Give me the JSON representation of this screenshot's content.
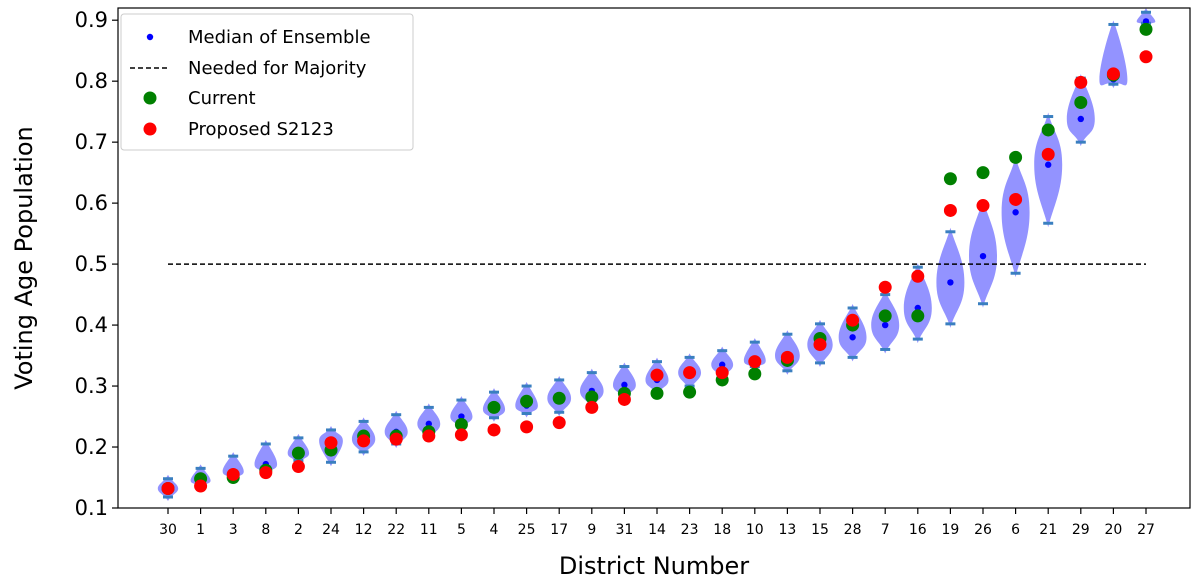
{
  "chart_data": {
    "type": "scatter",
    "title": "",
    "xlabel": "District Number",
    "ylabel": "Voting Age Population",
    "ylim": [
      0.1,
      0.92
    ],
    "yticks": [
      "0.1",
      "0.2",
      "0.3",
      "0.4",
      "0.5",
      "0.6",
      "0.7",
      "0.8",
      "0.9"
    ],
    "categories": [
      "30",
      "1",
      "3",
      "8",
      "2",
      "24",
      "12",
      "22",
      "11",
      "5",
      "4",
      "25",
      "17",
      "9",
      "31",
      "14",
      "23",
      "18",
      "10",
      "13",
      "15",
      "28",
      "7",
      "16",
      "19",
      "26",
      "6",
      "21",
      "29",
      "20",
      "27"
    ],
    "majority_line": 0.5,
    "legend_position": "top-left",
    "colors": {
      "median": "#0000ff",
      "majority": "#000000",
      "current": "#008000",
      "proposed": "#ff0000",
      "violin": "#8080ff",
      "whisker": "#3a7fc0"
    },
    "legend": [
      {
        "label": "Median of Ensemble",
        "marker": "small-dot",
        "color": "#0000ff"
      },
      {
        "label": "Needed for Majority",
        "marker": "dashed-line",
        "color": "#000000"
      },
      {
        "label": "Current",
        "marker": "dot",
        "color": "#008000"
      },
      {
        "label": "Proposed S2123",
        "marker": "dot",
        "color": "#ff0000"
      }
    ],
    "series": [
      {
        "name": "Median of Ensemble",
        "values": [
          0.132,
          0.145,
          0.16,
          0.172,
          0.19,
          0.21,
          0.213,
          0.225,
          0.238,
          0.25,
          0.262,
          0.268,
          0.28,
          0.292,
          0.302,
          0.31,
          0.322,
          0.335,
          0.342,
          0.35,
          0.368,
          0.38,
          0.4,
          0.428,
          0.47,
          0.513,
          0.585,
          0.663,
          0.738,
          0.803,
          0.898
        ]
      },
      {
        "name": "Current",
        "values": [
          0.132,
          0.148,
          0.15,
          0.162,
          0.19,
          0.195,
          0.218,
          0.218,
          0.225,
          0.237,
          0.265,
          0.275,
          0.28,
          0.282,
          0.288,
          0.288,
          0.29,
          0.31,
          0.32,
          0.342,
          0.378,
          0.4,
          0.415,
          0.415,
          0.64,
          0.65,
          0.675,
          0.72,
          0.765,
          0.81,
          0.885
        ]
      },
      {
        "name": "Proposed S2123",
        "values": [
          0.132,
          0.136,
          0.155,
          0.158,
          0.168,
          0.207,
          0.21,
          0.213,
          0.218,
          0.22,
          0.228,
          0.233,
          0.24,
          0.265,
          0.278,
          0.318,
          0.322,
          0.322,
          0.34,
          0.347,
          0.368,
          0.408,
          0.462,
          0.48,
          0.588,
          0.596,
          0.606,
          0.68,
          0.798,
          0.812,
          0.84
        ]
      }
    ],
    "ensemble_min": [
      0.118,
      0.138,
      0.15,
      0.16,
      0.178,
      0.175,
      0.192,
      0.205,
      0.218,
      0.235,
      0.248,
      0.255,
      0.257,
      0.27,
      0.285,
      0.292,
      0.3,
      0.318,
      0.332,
      0.325,
      0.338,
      0.347,
      0.36,
      0.377,
      0.402,
      0.435,
      0.485,
      0.567,
      0.7,
      0.795,
      0.895
    ],
    "ensemble_max": [
      0.148,
      0.165,
      0.185,
      0.205,
      0.215,
      0.228,
      0.242,
      0.253,
      0.265,
      0.277,
      0.29,
      0.3,
      0.31,
      0.322,
      0.332,
      0.34,
      0.347,
      0.358,
      0.372,
      0.385,
      0.402,
      0.428,
      0.45,
      0.495,
      0.553,
      0.6,
      0.67,
      0.742,
      0.805,
      0.893,
      0.913
    ]
  }
}
